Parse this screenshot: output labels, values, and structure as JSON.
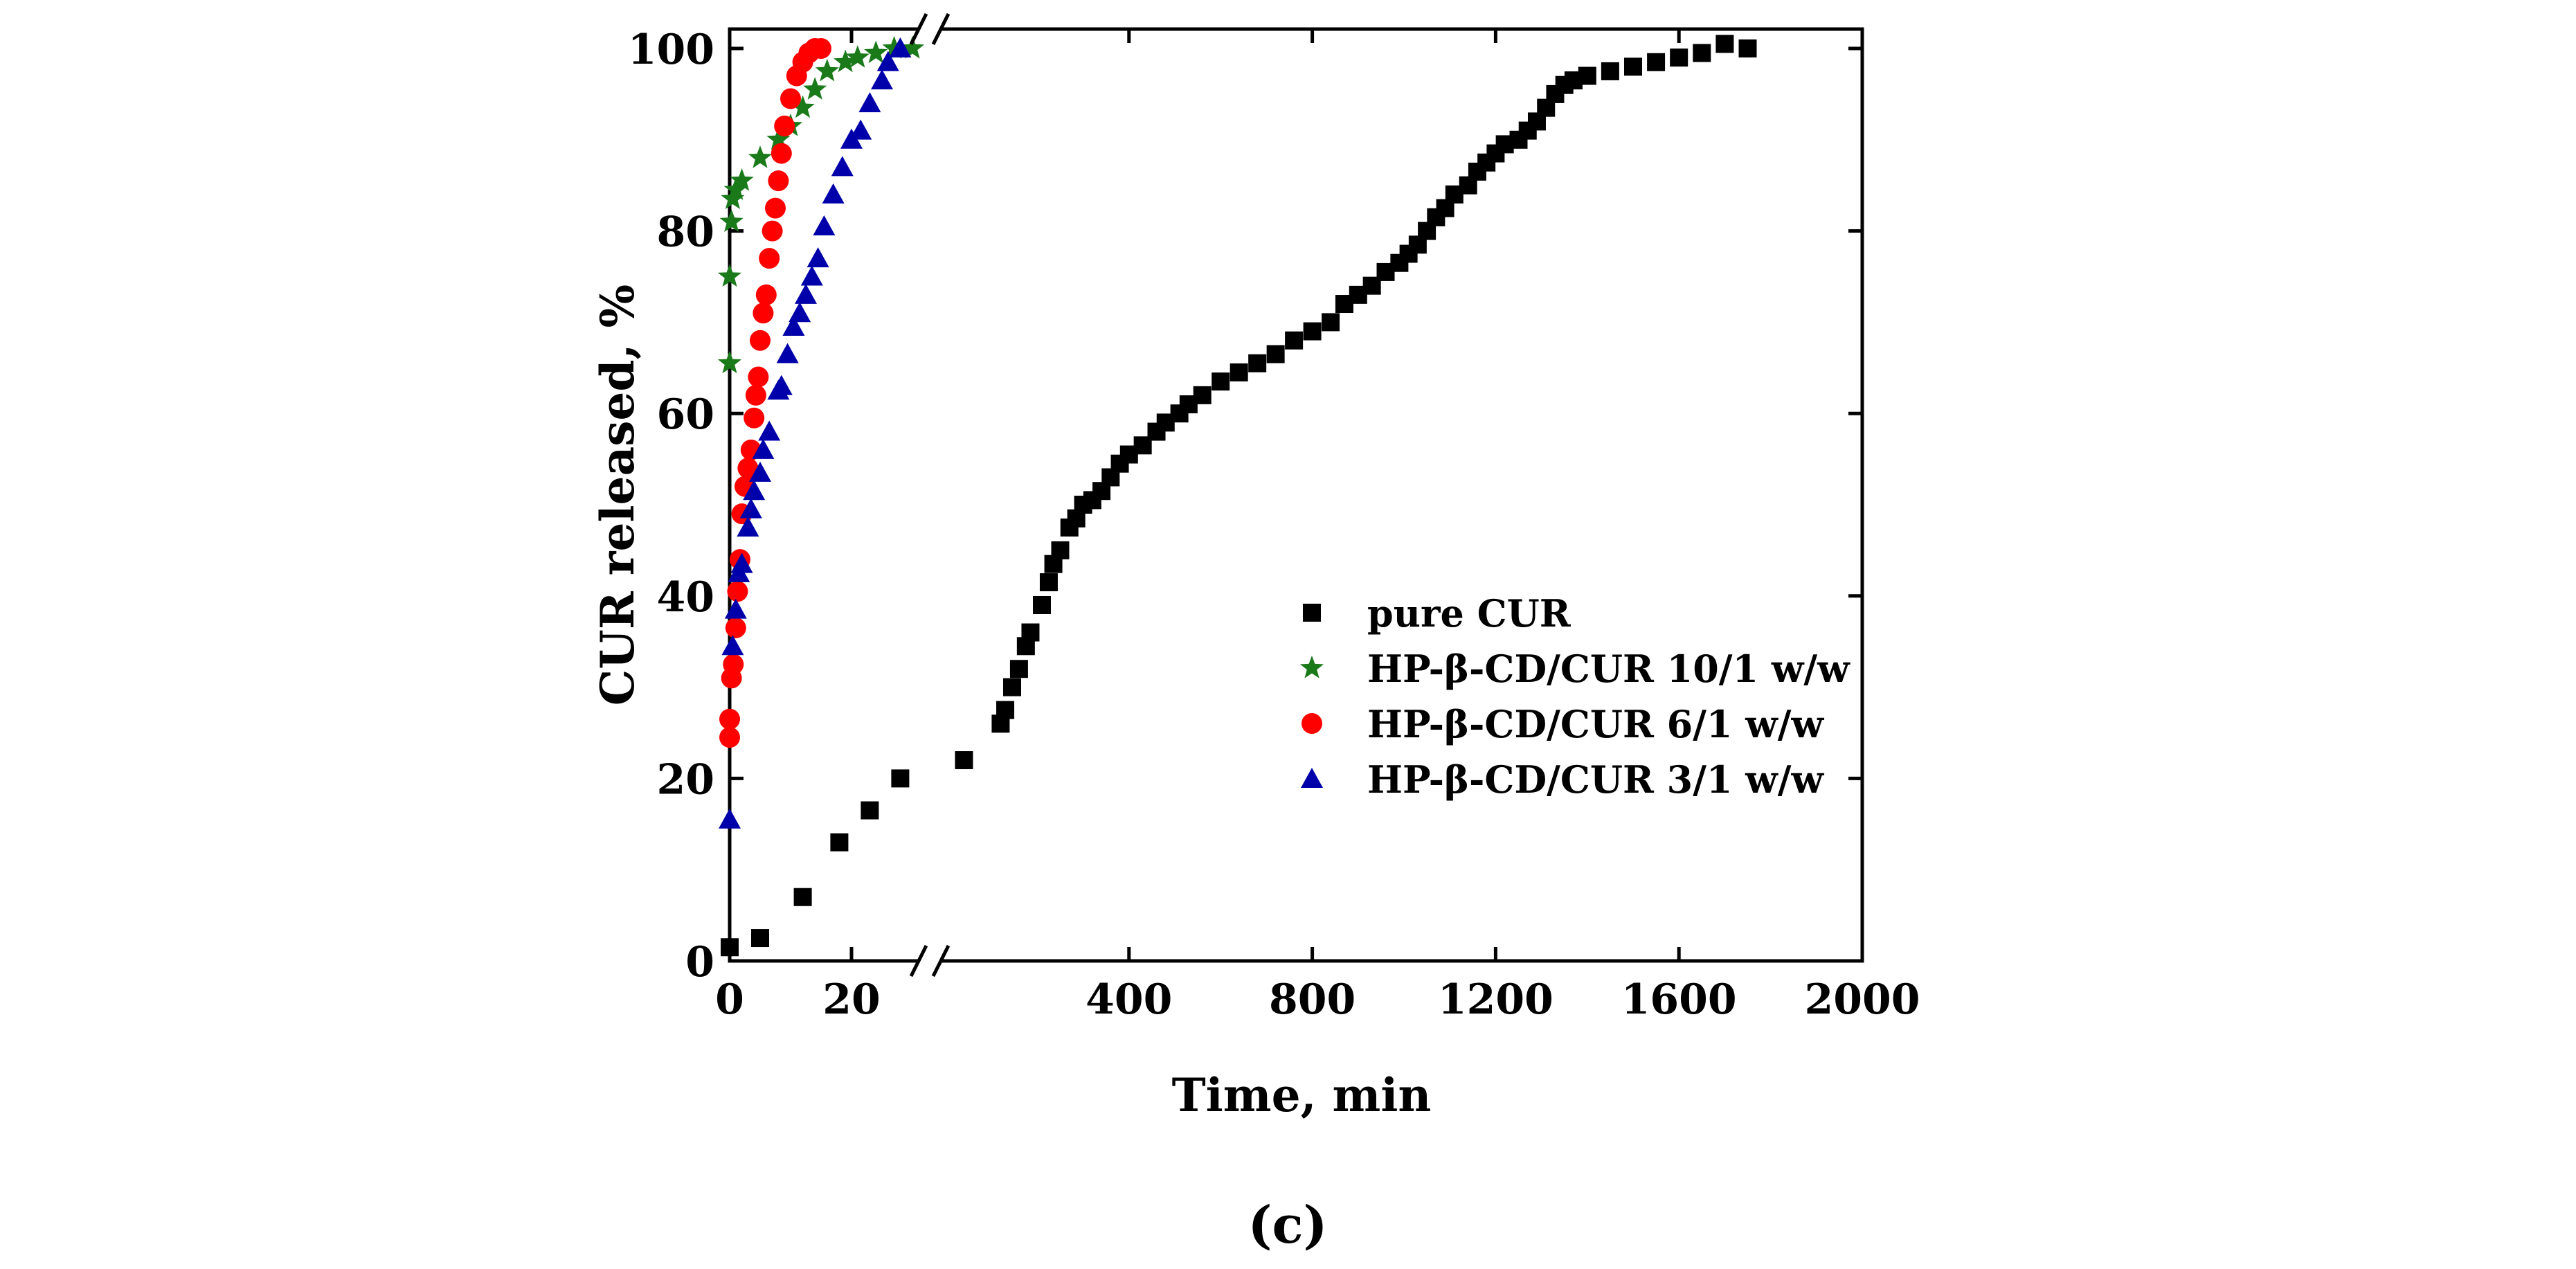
{
  "chart_data": {
    "type": "scatter",
    "title": "",
    "xlabel": "Time, min",
    "ylabel": "CUR released, %",
    "ylim": [
      0,
      100
    ],
    "x_axis": {
      "broken": true,
      "segment1": {
        "range": [
          0,
          30
        ],
        "ticks": [
          0,
          20
        ],
        "tick_labels": [
          "0",
          "20"
        ]
      },
      "segment2": {
        "range": [
          0,
          2000
        ],
        "ticks": [
          400,
          800,
          1200,
          1600,
          2000
        ],
        "tick_labels": [
          "400",
          "800",
          "1200",
          "1600",
          "2000"
        ]
      }
    },
    "y_ticks": [
      0,
      20,
      40,
      60,
      80,
      100
    ],
    "y_tick_labels": [
      "0",
      "20",
      "40",
      "60",
      "80",
      "100"
    ],
    "caption": "(c)",
    "legend_position": "center-right",
    "series": [
      {
        "name": "pure CUR",
        "color": "#000000",
        "marker": "square",
        "points_seg1": [
          [
            0,
            1.5
          ],
          [
            5,
            2.5
          ],
          [
            12,
            7
          ],
          [
            18,
            13
          ],
          [
            23,
            16.5
          ],
          [
            28,
            20
          ]
        ],
        "points_seg2": [
          [
            40,
            22
          ],
          [
            120,
            26
          ],
          [
            130,
            27.5
          ],
          [
            145,
            30
          ],
          [
            160,
            32
          ],
          [
            175,
            34.5
          ],
          [
            185,
            36
          ],
          [
            210,
            39
          ],
          [
            225,
            41.5
          ],
          [
            235,
            43.5
          ],
          [
            250,
            45
          ],
          [
            270,
            47.5
          ],
          [
            285,
            48.5
          ],
          [
            300,
            50
          ],
          [
            320,
            50.5
          ],
          [
            340,
            51.5
          ],
          [
            360,
            53
          ],
          [
            380,
            54.5
          ],
          [
            400,
            55.5
          ],
          [
            430,
            56.5
          ],
          [
            460,
            58
          ],
          [
            480,
            59
          ],
          [
            510,
            60
          ],
          [
            530,
            61
          ],
          [
            560,
            62
          ],
          [
            600,
            63.5
          ],
          [
            640,
            64.5
          ],
          [
            680,
            65.5
          ],
          [
            720,
            66.5
          ],
          [
            760,
            68
          ],
          [
            800,
            69
          ],
          [
            840,
            70
          ],
          [
            870,
            72
          ],
          [
            900,
            73
          ],
          [
            930,
            74
          ],
          [
            960,
            75.5
          ],
          [
            990,
            76.5
          ],
          [
            1010,
            77.5
          ],
          [
            1030,
            78.5
          ],
          [
            1050,
            80
          ],
          [
            1070,
            81.5
          ],
          [
            1090,
            82.5
          ],
          [
            1110,
            84
          ],
          [
            1140,
            85
          ],
          [
            1160,
            86.5
          ],
          [
            1180,
            87.5
          ],
          [
            1200,
            88.5
          ],
          [
            1220,
            89.5
          ],
          [
            1250,
            90
          ],
          [
            1270,
            91
          ],
          [
            1290,
            92
          ],
          [
            1310,
            93.5
          ],
          [
            1330,
            95
          ],
          [
            1350,
            96
          ],
          [
            1370,
            96.5
          ],
          [
            1400,
            97
          ],
          [
            1450,
            97.5
          ],
          [
            1500,
            98
          ],
          [
            1550,
            98.5
          ],
          [
            1600,
            99
          ],
          [
            1650,
            99.5
          ],
          [
            1700,
            100.5
          ],
          [
            1750,
            100
          ]
        ]
      },
      {
        "name": "HP-β-CD/CUR 10/1 w/w",
        "color": "#1a7a1a",
        "marker": "star",
        "points_seg1": [
          [
            0,
            65.5
          ],
          [
            0,
            75
          ],
          [
            0.3,
            81
          ],
          [
            0.5,
            83.5
          ],
          [
            1,
            84.5
          ],
          [
            2,
            85.5
          ],
          [
            5,
            88
          ],
          [
            8,
            90
          ],
          [
            10,
            91.5
          ],
          [
            12,
            93.5
          ],
          [
            14,
            95.5
          ],
          [
            16,
            97.5
          ],
          [
            19,
            98.5
          ],
          [
            21,
            99
          ],
          [
            24,
            99.5
          ],
          [
            27,
            100
          ],
          [
            30,
            100
          ]
        ],
        "points_seg2": []
      },
      {
        "name": "HP-β-CD/CUR 6/1 w/w",
        "color": "#ff0000",
        "marker": "circle",
        "points_seg1": [
          [
            0,
            24.5
          ],
          [
            0,
            26.5
          ],
          [
            0.3,
            31
          ],
          [
            0.6,
            32.5
          ],
          [
            1,
            36.5
          ],
          [
            1.3,
            40.5
          ],
          [
            1.7,
            44
          ],
          [
            2,
            49
          ],
          [
            2.5,
            52
          ],
          [
            3,
            54
          ],
          [
            3.5,
            56
          ],
          [
            4,
            59.5
          ],
          [
            4.3,
            62
          ],
          [
            4.7,
            64
          ],
          [
            5,
            68
          ],
          [
            5.5,
            71
          ],
          [
            6,
            73
          ],
          [
            6.5,
            77
          ],
          [
            7,
            80
          ],
          [
            7.5,
            82.5
          ],
          [
            8,
            85.5
          ],
          [
            8.5,
            88.5
          ],
          [
            9,
            91.5
          ],
          [
            10,
            94.5
          ],
          [
            11,
            97
          ],
          [
            12,
            98.5
          ],
          [
            13,
            99.5
          ],
          [
            14,
            100
          ],
          [
            15,
            100
          ]
        ],
        "points_seg2": []
      },
      {
        "name": "HP-β-CD/CUR 3/1 w/w",
        "color": "#0000aa",
        "marker": "triangle",
        "points_seg1": [
          [
            0,
            15.5
          ],
          [
            0.5,
            34.5
          ],
          [
            1,
            38.5
          ],
          [
            1.5,
            42.5
          ],
          [
            2,
            43.5
          ],
          [
            3,
            47.5
          ],
          [
            3.5,
            49.5
          ],
          [
            4,
            51.5
          ],
          [
            5,
            53.5
          ],
          [
            5.5,
            56
          ],
          [
            6.5,
            58
          ],
          [
            8,
            62.5
          ],
          [
            8.5,
            63
          ],
          [
            9.5,
            66.5
          ],
          [
            10.5,
            69.5
          ],
          [
            11.5,
            71
          ],
          [
            12.5,
            73
          ],
          [
            13.5,
            75
          ],
          [
            14.5,
            77
          ],
          [
            15.5,
            80.5
          ],
          [
            17,
            84
          ],
          [
            18.5,
            87
          ],
          [
            20,
            90
          ],
          [
            21.5,
            91
          ],
          [
            23,
            94
          ],
          [
            25,
            96.5
          ],
          [
            26,
            98.5
          ],
          [
            28,
            100
          ]
        ],
        "points_seg2": []
      }
    ]
  }
}
